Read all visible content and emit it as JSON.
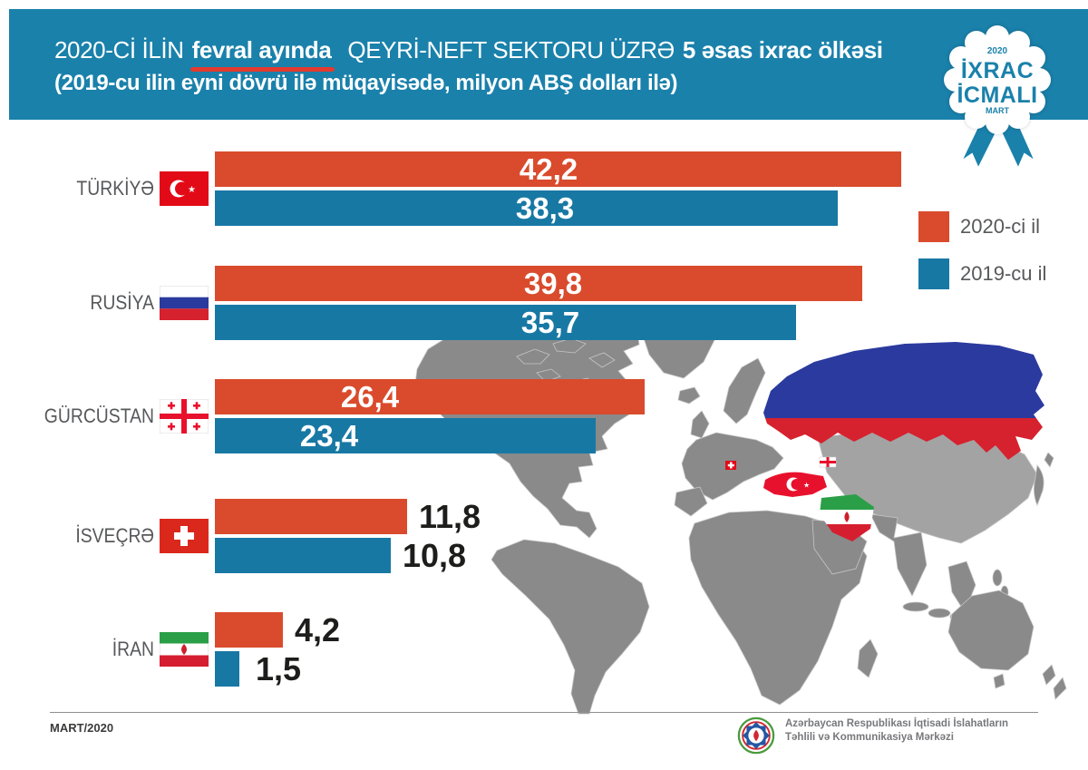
{
  "header": {
    "line1_pre": "2020-Cİ İLİN",
    "line1_highlight": "fevral ayında",
    "line1_mid": "QEYRİ-NEFT SEKTORU ÜZRƏ",
    "line1_bold": "5 əsas ixrac ölkəsi",
    "line2": "(2019-cu ilin eyni dövrü ilə müqayisədə, milyon ABŞ dolları ilə)"
  },
  "badge": {
    "year": "2020",
    "title1": "İXRAC",
    "title2": "İCMALI",
    "month": "MART"
  },
  "chart_data": {
    "type": "bar",
    "orientation": "horizontal",
    "title": "2020-ci ilin fevral ayında qeyri-neft sektoru üzrə 5 əsas ixrac ölkəsi",
    "unit": "milyon ABŞ dolları",
    "categories": [
      "TÜRKİYƏ",
      "RUSİYA",
      "GÜRCÜSTAN",
      "İSVEÇRƏ",
      "İRAN"
    ],
    "series": [
      {
        "name": "2020-ci il",
        "color": "#d94b2c",
        "values": [
          42.2,
          39.8,
          26.4,
          11.8,
          4.2
        ]
      },
      {
        "name": "2019-cu il",
        "color": "#1878a4",
        "values": [
          38.3,
          35.7,
          23.4,
          10.8,
          1.5
        ]
      }
    ],
    "legend_position": "right",
    "grid": false
  },
  "rows": [
    {
      "name": "TÜRKİYƏ",
      "flag": "turkey-flag",
      "v2020": "42,2",
      "v2019": "38,3"
    },
    {
      "name": "RUSİYA",
      "flag": "russia-flag",
      "v2020": "39,8",
      "v2019": "35,7"
    },
    {
      "name": "GÜRCÜSTAN",
      "flag": "georgia-flag",
      "v2020": "26,4",
      "v2019": "23,4"
    },
    {
      "name": "İSVEÇRƏ",
      "flag": "switzerland-flag",
      "v2020": "11,8",
      "v2019": "10,8"
    },
    {
      "name": "İRAN",
      "flag": "iran-flag",
      "v2020": "4,2",
      "v2019": "1,5"
    }
  ],
  "legend": [
    {
      "label": "2020-ci il",
      "color": "#d94b2c"
    },
    {
      "label": "2019-cu il",
      "color": "#1878a4"
    }
  ],
  "footer": {
    "date": "MART/2020",
    "org_line1": "Azərbaycan Respublikası İqtisadi İslahatların",
    "org_line2": "Təhlili və Kommunikasiya Mərkəzi"
  },
  "colors": {
    "header_teal": "#1a81ab",
    "bar_red": "#d94b2c",
    "bar_blue": "#1878a4",
    "map_gray": "#8a8a8a"
  }
}
